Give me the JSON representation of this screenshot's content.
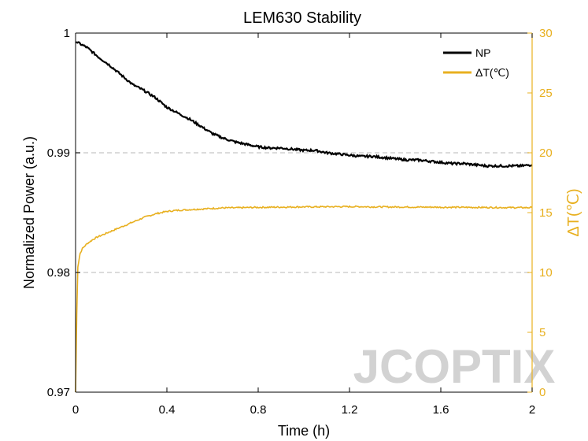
{
  "chart_data": {
    "type": "line",
    "title": "LEM630 Stability",
    "xlabel": "Time (h)",
    "ylabel_left": "Normalized Power (a.u.)",
    "ylabel_right": "ΔT(℃)",
    "x_ticks": [
      "0",
      "0.4",
      "0.8",
      "1.2",
      "1.6",
      "2"
    ],
    "y_left_ticks": [
      "0.97",
      "0.98",
      "0.99",
      "1"
    ],
    "y_right_ticks": [
      "0",
      "5",
      "10",
      "15",
      "20",
      "25",
      "30"
    ],
    "xlim": [
      0,
      2
    ],
    "ylim_left": [
      0.97,
      1.0
    ],
    "ylim_right": [
      0,
      30
    ],
    "grid": "dashed horizontal lines at 0.98 and 0.99",
    "legend_position": "top-right",
    "series": [
      {
        "name": "NP",
        "axis": "left",
        "color": "#000000",
        "x": [
          0,
          0.05,
          0.1,
          0.15,
          0.2,
          0.25,
          0.3,
          0.35,
          0.4,
          0.45,
          0.5,
          0.55,
          0.6,
          0.65,
          0.7,
          0.75,
          0.8,
          0.85,
          0.9,
          0.95,
          1.0,
          1.05,
          1.1,
          1.15,
          1.2,
          1.25,
          1.3,
          1.35,
          1.4,
          1.45,
          1.5,
          1.55,
          1.6,
          1.65,
          1.7,
          1.75,
          1.8,
          1.85,
          1.9,
          1.95,
          2.0
        ],
        "values": [
          0.9993,
          0.9988,
          0.998,
          0.9973,
          0.9965,
          0.9957,
          0.9952,
          0.9946,
          0.9938,
          0.9933,
          0.9928,
          0.9922,
          0.9916,
          0.9912,
          0.9909,
          0.9907,
          0.9905,
          0.9904,
          0.9904,
          0.9903,
          0.9902,
          0.9902,
          0.99,
          0.9899,
          0.9898,
          0.9897,
          0.9897,
          0.9896,
          0.9895,
          0.9894,
          0.9894,
          0.9893,
          0.9892,
          0.9891,
          0.9891,
          0.989,
          0.9889,
          0.9889,
          0.9889,
          0.9889,
          0.989
        ]
      },
      {
        "name": "ΔT(℃)",
        "axis": "right",
        "color": "#E8B020",
        "x": [
          0,
          0.005,
          0.01,
          0.02,
          0.03,
          0.05,
          0.08,
          0.1,
          0.15,
          0.2,
          0.25,
          0.3,
          0.35,
          0.4,
          0.45,
          0.5,
          0.55,
          0.6,
          0.65,
          0.7,
          0.75,
          0.8,
          0.85,
          0.9,
          0.95,
          1.0,
          1.05,
          1.1,
          1.15,
          1.2,
          1.25,
          1.3,
          1.35,
          1.4,
          1.45,
          1.5,
          1.55,
          1.6,
          1.65,
          1.7,
          1.75,
          1.8,
          1.85,
          1.9,
          1.95,
          2.0
        ],
        "values": [
          0,
          6.5,
          10.5,
          11.6,
          12.0,
          12.4,
          12.8,
          13.0,
          13.4,
          13.8,
          14.2,
          14.6,
          14.9,
          15.1,
          15.2,
          15.25,
          15.3,
          15.35,
          15.4,
          15.4,
          15.42,
          15.44,
          15.45,
          15.46,
          15.47,
          15.48,
          15.48,
          15.49,
          15.5,
          15.5,
          15.5,
          15.48,
          15.48,
          15.47,
          15.47,
          15.46,
          15.46,
          15.45,
          15.45,
          15.44,
          15.44,
          15.43,
          15.43,
          15.42,
          15.42,
          15.42
        ]
      }
    ],
    "watermark": "JCOPTIX"
  }
}
